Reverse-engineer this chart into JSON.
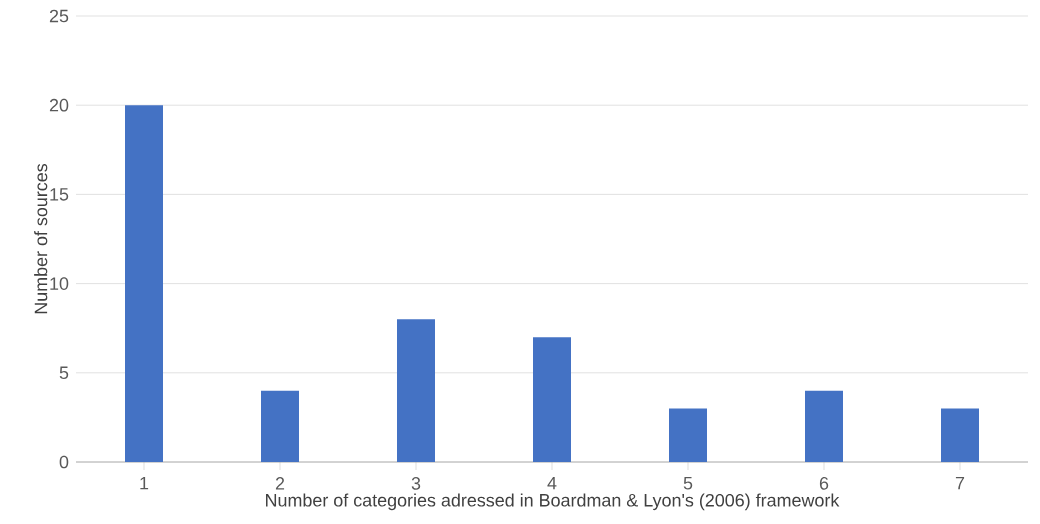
{
  "chart_data": {
    "type": "bar",
    "xlabel": "Number of categories adressed in Boardman & Lyon's (2006) framework",
    "ylabel": "Number of sources",
    "categories": [
      "1",
      "2",
      "3",
      "4",
      "5",
      "6",
      "7"
    ],
    "values": [
      20,
      4,
      8,
      7,
      3,
      4,
      3
    ],
    "color": "#4472c4",
    "ylim": [
      0,
      25
    ],
    "yticks": [
      0,
      5,
      10,
      15,
      20,
      25
    ],
    "grid": "y"
  }
}
